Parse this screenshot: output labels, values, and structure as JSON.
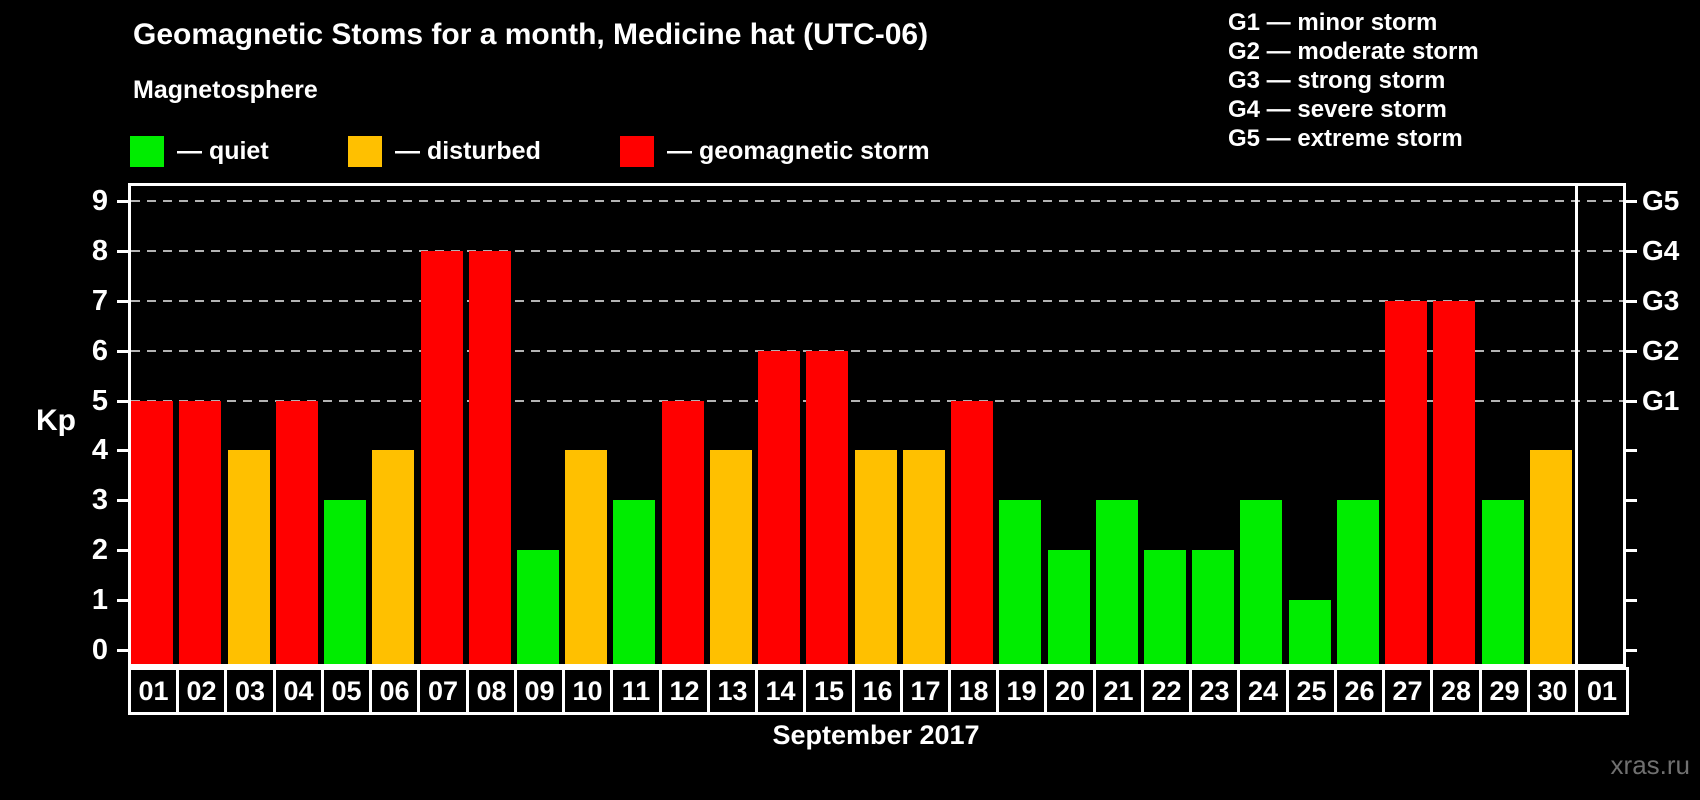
{
  "title": "Geomagnetic Stoms for a month, Medicine hat (UTC-06)",
  "magnetosphere_legend": {
    "heading": "Magnetosphere",
    "items": [
      {
        "key": "quiet",
        "label": "— quiet"
      },
      {
        "key": "disturbed",
        "label": "— disturbed"
      },
      {
        "key": "storm",
        "label": "— geomagnetic storm"
      }
    ]
  },
  "storm_scale_legend": [
    "G1 — minor storm",
    "G2 — moderate storm",
    "G3 — strong storm",
    "G4 — severe storm",
    "G5 — extreme storm"
  ],
  "watermark": "xras.ru",
  "colors": {
    "background": "#000000",
    "quiet": "#00ed00",
    "disturbed": "#ffc000",
    "storm": "#ff0000",
    "grid": "#b3b3b3",
    "axis": "#ffffff",
    "watermark": "#707070"
  },
  "chart_data": {
    "type": "bar",
    "title": "Geomagnetic Stoms for a month, Medicine hat (UTC-06)",
    "xlabel": "September 2017",
    "ylabel": "Kp",
    "x": [
      "01",
      "02",
      "03",
      "04",
      "05",
      "06",
      "07",
      "08",
      "09",
      "10",
      "11",
      "12",
      "13",
      "14",
      "15",
      "16",
      "17",
      "18",
      "19",
      "20",
      "21",
      "22",
      "23",
      "24",
      "25",
      "26",
      "27",
      "28",
      "29",
      "30",
      "01"
    ],
    "series": [
      {
        "name": "Kp index",
        "values": [
          5,
          5,
          4,
          5,
          3,
          4,
          8,
          8,
          2,
          4,
          3,
          5,
          4,
          6,
          6,
          4,
          4,
          5,
          3,
          2,
          3,
          2,
          2,
          3,
          1,
          3,
          7,
          7,
          3,
          4,
          null
        ],
        "categories": [
          "storm",
          "storm",
          "disturbed",
          "storm",
          "quiet",
          "disturbed",
          "storm",
          "storm",
          "quiet",
          "disturbed",
          "quiet",
          "storm",
          "disturbed",
          "storm",
          "storm",
          "disturbed",
          "disturbed",
          "storm",
          "quiet",
          "quiet",
          "quiet",
          "quiet",
          "quiet",
          "quiet",
          "quiet",
          "quiet",
          "storm",
          "storm",
          "quiet",
          "disturbed",
          null
        ]
      }
    ],
    "ylim": [
      -0.4,
      9.4
    ],
    "left_ticks": [
      0,
      1,
      2,
      3,
      4,
      5,
      6,
      7,
      8,
      9
    ],
    "right_ticks": [
      0,
      1,
      2,
      3,
      4,
      5,
      6,
      7,
      8,
      9
    ],
    "gridlines_at": [
      5,
      6,
      7,
      8,
      9
    ],
    "right_axis_labels": [
      {
        "kp": 5,
        "label": "G1"
      },
      {
        "kp": 6,
        "label": "G2"
      },
      {
        "kp": 7,
        "label": "G3"
      },
      {
        "kp": 8,
        "label": "G4"
      },
      {
        "kp": 9,
        "label": "G5"
      }
    ],
    "grid": "dashed horizontal lines at storm levels only",
    "legend_position": "top-left"
  }
}
